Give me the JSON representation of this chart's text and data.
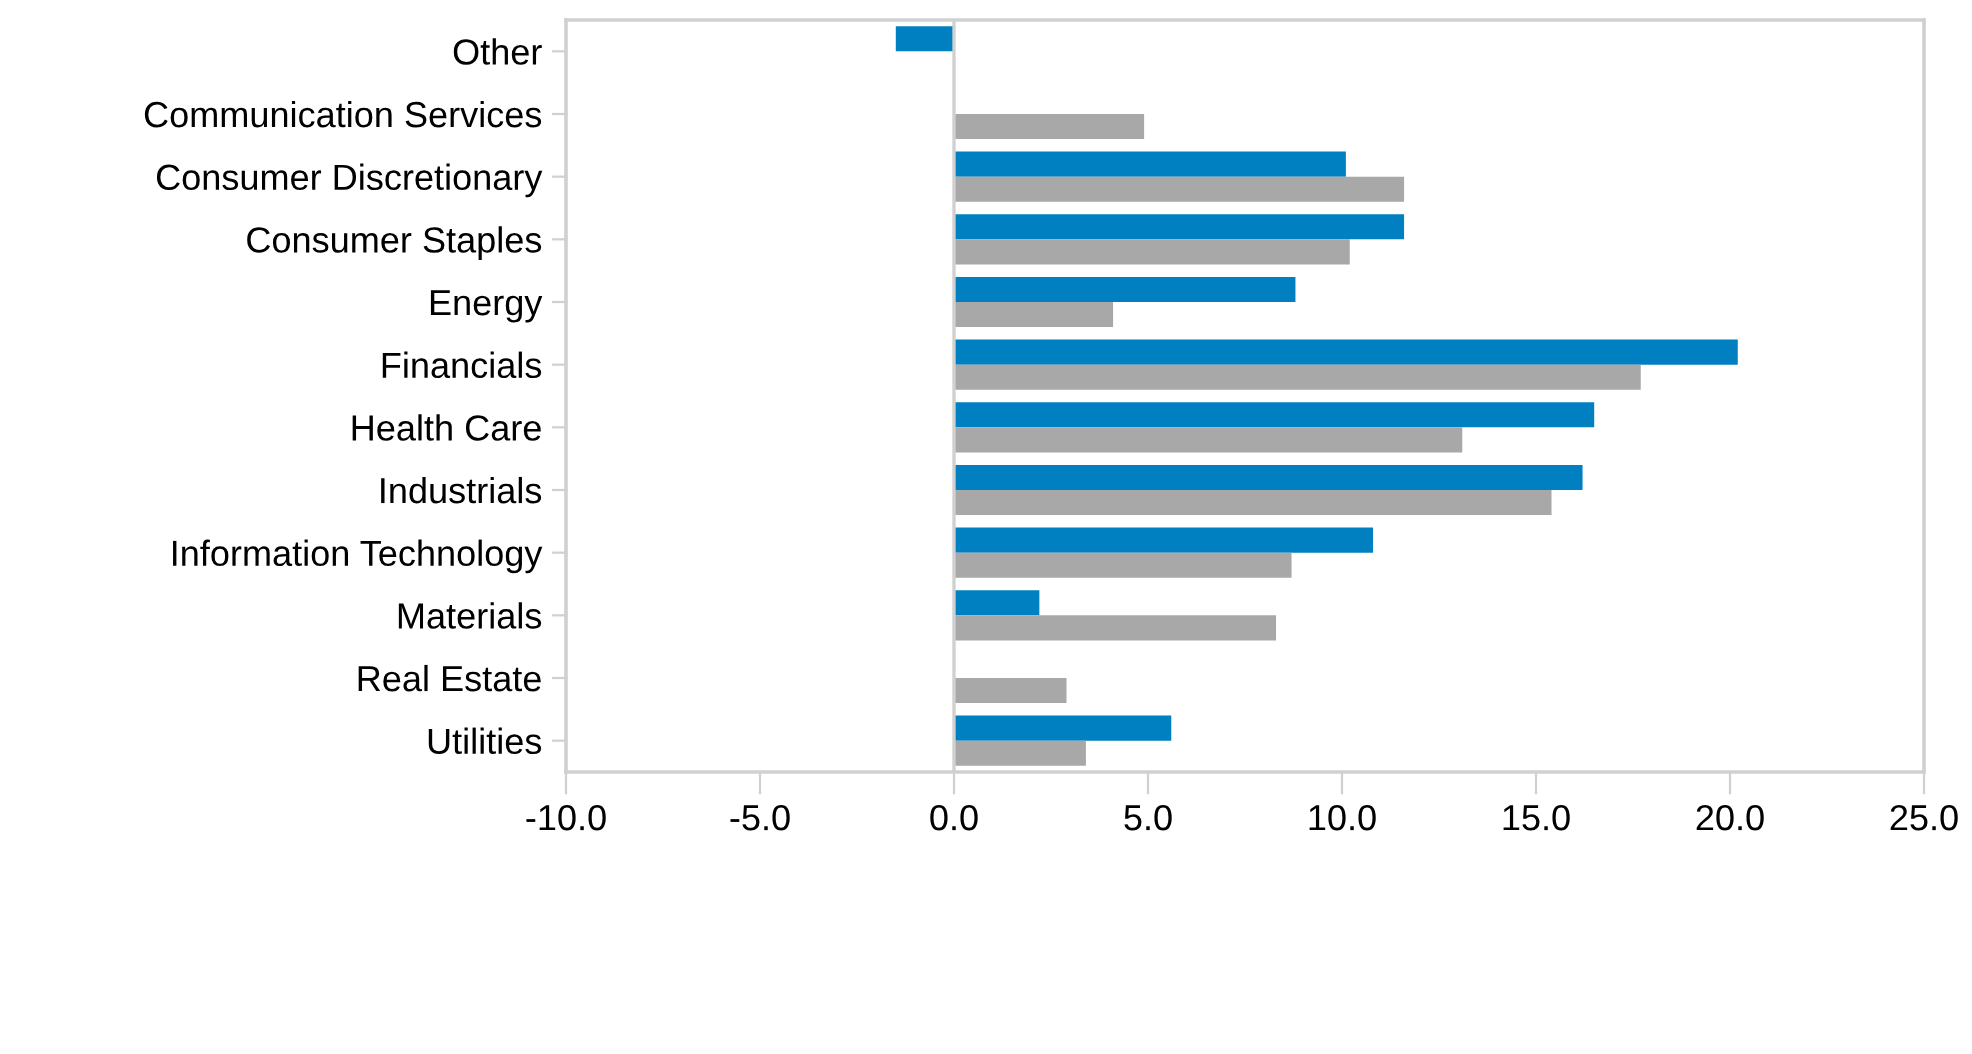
{
  "chart_data": {
    "type": "bar",
    "orientation": "horizontal",
    "categories": [
      "Other",
      "Communication Services",
      "Consumer Discretionary",
      "Consumer Staples",
      "Energy",
      "Financials",
      "Health Care",
      "Industrials",
      "Information Technology",
      "Materials",
      "Real Estate",
      "Utilities"
    ],
    "series": [
      {
        "color": "#0080c0",
        "values": [
          -1.5,
          null,
          10.1,
          11.6,
          8.8,
          20.2,
          16.5,
          16.2,
          10.8,
          2.2,
          null,
          5.6
        ]
      },
      {
        "color": "#a8a8a8",
        "values": [
          null,
          4.9,
          11.6,
          10.2,
          4.1,
          17.7,
          13.1,
          15.4,
          8.7,
          8.3,
          2.9,
          3.4
        ]
      }
    ],
    "xlim": [
      -10,
      25
    ],
    "xticks": [
      {
        "value": -10,
        "label": "-10.0"
      },
      {
        "value": -5,
        "label": "-5.0"
      },
      {
        "value": 0,
        "label": "0.0"
      },
      {
        "value": 5,
        "label": "5.0"
      },
      {
        "value": 10,
        "label": "10.0"
      },
      {
        "value": 15,
        "label": "15.0"
      },
      {
        "value": 20,
        "label": "20.0"
      },
      {
        "value": 25,
        "label": "25.0"
      }
    ],
    "ref_lines": [
      {
        "axis": "x",
        "value": 0,
        "color": "#d0d0d0"
      }
    ],
    "grid": false,
    "legend": false
  }
}
